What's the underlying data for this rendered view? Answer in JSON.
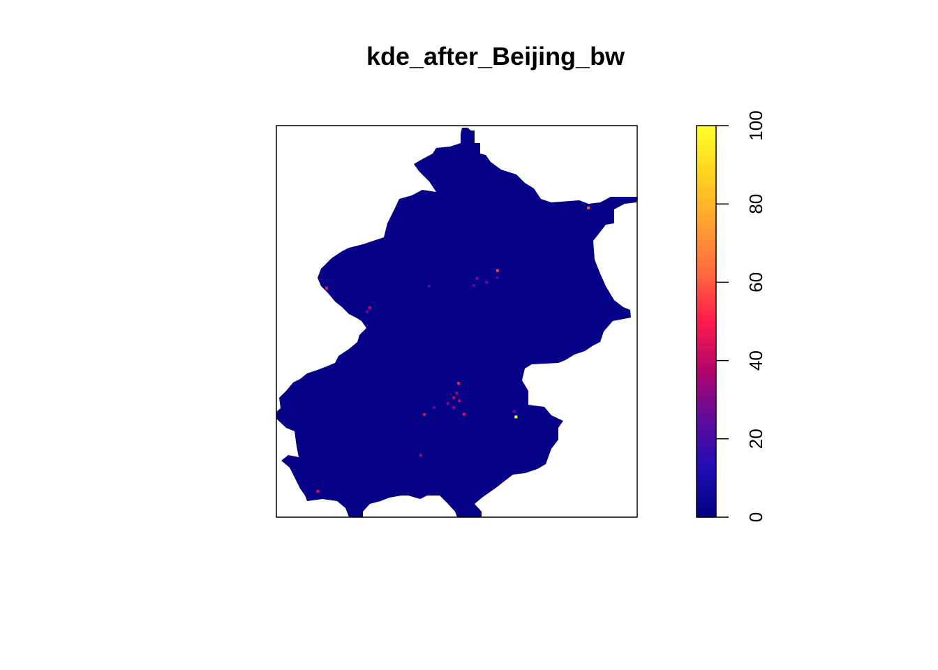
{
  "chart_data": {
    "type": "heatmap",
    "title": "kde_after_Beijing_bw",
    "xlabel": "",
    "ylabel": "",
    "axes_shown": false,
    "background_value": 2,
    "hotspots": [
      {
        "x": 0.865,
        "y": 0.79,
        "value": 60
      },
      {
        "x": 0.613,
        "y": 0.63,
        "value": 55
      },
      {
        "x": 0.556,
        "y": 0.61,
        "value": 30
      },
      {
        "x": 0.547,
        "y": 0.592,
        "value": 25
      },
      {
        "x": 0.583,
        "y": 0.6,
        "value": 28
      },
      {
        "x": 0.612,
        "y": 0.612,
        "value": 22
      },
      {
        "x": 0.423,
        "y": 0.59,
        "value": 20
      },
      {
        "x": 0.139,
        "y": 0.585,
        "value": 45
      },
      {
        "x": 0.259,
        "y": 0.535,
        "value": 40
      },
      {
        "x": 0.252,
        "y": 0.525,
        "value": 25
      },
      {
        "x": 0.505,
        "y": 0.342,
        "value": 50
      },
      {
        "x": 0.492,
        "y": 0.305,
        "value": 40
      },
      {
        "x": 0.507,
        "y": 0.297,
        "value": 38
      },
      {
        "x": 0.52,
        "y": 0.263,
        "value": 45
      },
      {
        "x": 0.492,
        "y": 0.28,
        "value": 32
      },
      {
        "x": 0.5,
        "y": 0.317,
        "value": 35
      },
      {
        "x": 0.475,
        "y": 0.29,
        "value": 30
      },
      {
        "x": 0.41,
        "y": 0.262,
        "value": 42
      },
      {
        "x": 0.438,
        "y": 0.28,
        "value": 25
      },
      {
        "x": 0.659,
        "y": 0.27,
        "value": 28
      },
      {
        "x": 0.664,
        "y": 0.256,
        "value": 100
      },
      {
        "x": 0.4,
        "y": 0.158,
        "value": 35
      },
      {
        "x": 0.115,
        "y": 0.066,
        "value": 45
      }
    ],
    "colorbar": {
      "range": [
        0,
        100
      ],
      "ticks": [
        0,
        20,
        40,
        60,
        80,
        100
      ],
      "palette": [
        "#00007F",
        "#1F0DB4",
        "#5E0B9E",
        "#B2056C",
        "#FF1A4C",
        "#FF6A3D",
        "#FFA030",
        "#FFD21F",
        "#FFFF2A"
      ],
      "position": "right"
    }
  }
}
